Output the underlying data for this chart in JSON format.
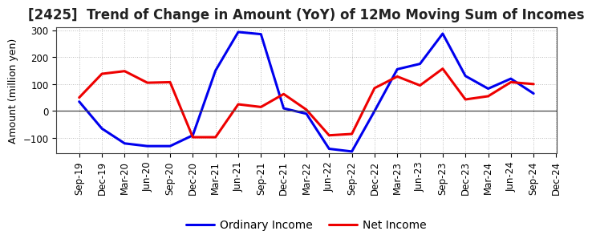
{
  "title": "[2425]  Trend of Change in Amount (YoY) of 12Mo Moving Sum of Incomes",
  "ylabel": "Amount (million yen)",
  "xlabels": [
    "Sep-19",
    "Dec-19",
    "Mar-20",
    "Jun-20",
    "Sep-20",
    "Dec-20",
    "Mar-21",
    "Jun-21",
    "Sep-21",
    "Dec-21",
    "Mar-22",
    "Jun-22",
    "Sep-22",
    "Dec-22",
    "Mar-23",
    "Jun-23",
    "Sep-23",
    "Dec-23",
    "Mar-24",
    "Jun-24",
    "Sep-24",
    "Dec-24"
  ],
  "ordinary_income": [
    35,
    -65,
    -120,
    -130,
    -130,
    -90,
    150,
    293,
    285,
    10,
    -10,
    -140,
    -150,
    0,
    155,
    175,
    287,
    130,
    83,
    120,
    65,
    null
  ],
  "net_income": [
    50,
    138,
    148,
    105,
    107,
    -97,
    -97,
    25,
    15,
    63,
    5,
    -90,
    -85,
    85,
    128,
    95,
    157,
    43,
    55,
    107,
    100,
    null
  ],
  "ylim": [
    -155,
    310
  ],
  "yticks": [
    -100,
    0,
    100,
    200,
    300
  ],
  "ordinary_color": "#0000EE",
  "net_color": "#EE0000",
  "bg_color": "#FFFFFF",
  "grid_color": "#BBBBBB",
  "legend_ordinary": "Ordinary Income",
  "legend_net": "Net Income",
  "title_fontsize": 12,
  "axis_fontsize": 9,
  "tick_fontsize": 8.5,
  "legend_fontsize": 10,
  "line_width": 2.2
}
